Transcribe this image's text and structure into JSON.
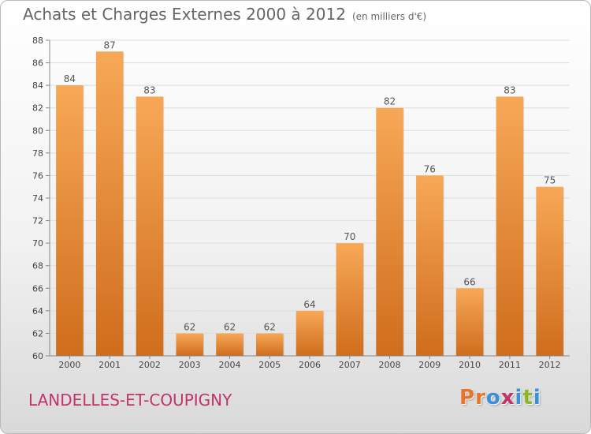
{
  "title": "Achats et Charges Externes 2000 à 2012",
  "unit": "(en milliers d'€)",
  "commune": "LANDELLES-ET-COUPIGNY",
  "logo": {
    "text": "Proxiti",
    "letter_colors": [
      "#e8732a",
      "#e8732a",
      "#3a8fd6",
      "#c0346a",
      "#3a8fd6",
      "#8ab52c",
      "#3a8fd6"
    ]
  },
  "colors": {
    "bar_top": "#f7a857",
    "bar_bottom": "#cf6d1c",
    "axis_text": "#444444",
    "label_text": "#555555",
    "grid": "#dddddd"
  },
  "chart_data": {
    "type": "bar",
    "categories": [
      "2000",
      "2001",
      "2002",
      "2003",
      "2004",
      "2005",
      "2006",
      "2007",
      "2008",
      "2009",
      "2010",
      "2011",
      "2012"
    ],
    "values": [
      84,
      87,
      83,
      62,
      62,
      62,
      64,
      70,
      82,
      76,
      66,
      83,
      75
    ],
    "ylim": [
      60,
      88
    ],
    "yticks": [
      60,
      62,
      64,
      66,
      68,
      70,
      72,
      74,
      76,
      78,
      80,
      82,
      84,
      86,
      88
    ],
    "grid": true
  }
}
